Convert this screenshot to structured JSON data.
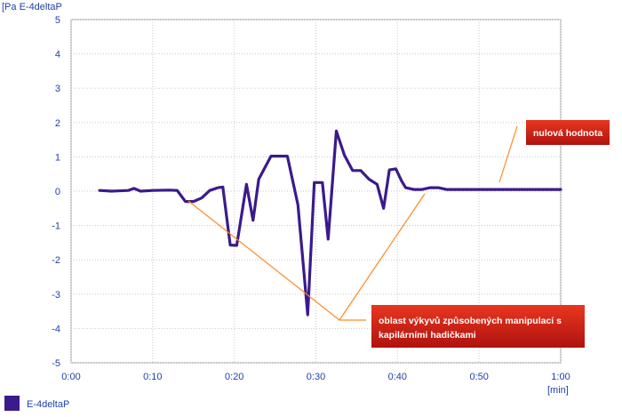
{
  "chart_data": {
    "type": "line",
    "ylabel": "[Pa E-4deltaP",
    "xunit": "[min]",
    "ylim": [
      -5,
      5
    ],
    "xlim": [
      0,
      60
    ],
    "yticks": [
      5,
      4,
      3,
      2,
      1,
      0,
      -1,
      -2,
      -3,
      -4,
      -5
    ],
    "xticks": [
      {
        "v": 0,
        "label": "0:00"
      },
      {
        "v": 10,
        "label": "0:10"
      },
      {
        "v": 20,
        "label": "0:20"
      },
      {
        "v": 30,
        "label": "0:30"
      },
      {
        "v": 40,
        "label": "0:40"
      },
      {
        "v": 50,
        "label": "0:50"
      },
      {
        "v": 60,
        "label": "1:00"
      }
    ],
    "grid": true,
    "legend": "bottom-left",
    "series": [
      {
        "name": "E-4deltaP",
        "color": "#3b1a8c",
        "points": [
          [
            3.5,
            0.02
          ],
          [
            5,
            0.0
          ],
          [
            7,
            0.02
          ],
          [
            7.7,
            0.08
          ],
          [
            8.5,
            0.0
          ],
          [
            10,
            0.02
          ],
          [
            12,
            0.03
          ],
          [
            13,
            0.02
          ],
          [
            14,
            -0.3
          ],
          [
            15,
            -0.3
          ],
          [
            16,
            -0.2
          ],
          [
            17,
            0.02
          ],
          [
            18,
            0.1
          ],
          [
            18.6,
            0.12
          ],
          [
            19.5,
            -1.57
          ],
          [
            20.3,
            -1.58
          ],
          [
            21.5,
            0.2
          ],
          [
            22.3,
            -0.85
          ],
          [
            23,
            0.35
          ],
          [
            24.5,
            1.02
          ],
          [
            26.5,
            1.02
          ],
          [
            27.8,
            -0.4
          ],
          [
            29,
            -3.6
          ],
          [
            29.8,
            0.25
          ],
          [
            30.8,
            0.25
          ],
          [
            31.5,
            -1.4
          ],
          [
            32.5,
            1.75
          ],
          [
            33.5,
            1.05
          ],
          [
            34.5,
            0.6
          ],
          [
            35.5,
            0.6
          ],
          [
            36.5,
            0.35
          ],
          [
            37.5,
            0.2
          ],
          [
            38.3,
            -0.5
          ],
          [
            39,
            0.62
          ],
          [
            39.8,
            0.65
          ],
          [
            40.5,
            0.3
          ],
          [
            41,
            0.1
          ],
          [
            42,
            0.05
          ],
          [
            43,
            0.05
          ],
          [
            44,
            0.1
          ],
          [
            45,
            0.1
          ],
          [
            46,
            0.05
          ],
          [
            48,
            0.05
          ],
          [
            50,
            0.05
          ],
          [
            52,
            0.05
          ],
          [
            54,
            0.05
          ],
          [
            56,
            0.05
          ],
          [
            58,
            0.05
          ],
          [
            60,
            0.05
          ]
        ]
      }
    ],
    "annotations": [
      {
        "text": "nulová hodnota",
        "color": "#cc1a1a"
      },
      {
        "text_lines": [
          "oblast výkyvů způsobených manipulací s",
          "kapilárními hadičkami"
        ],
        "color": "#cc1a1a"
      }
    ]
  },
  "legend": {
    "label": "E-4deltaP",
    "swatch_color": "#3b1a8c"
  }
}
